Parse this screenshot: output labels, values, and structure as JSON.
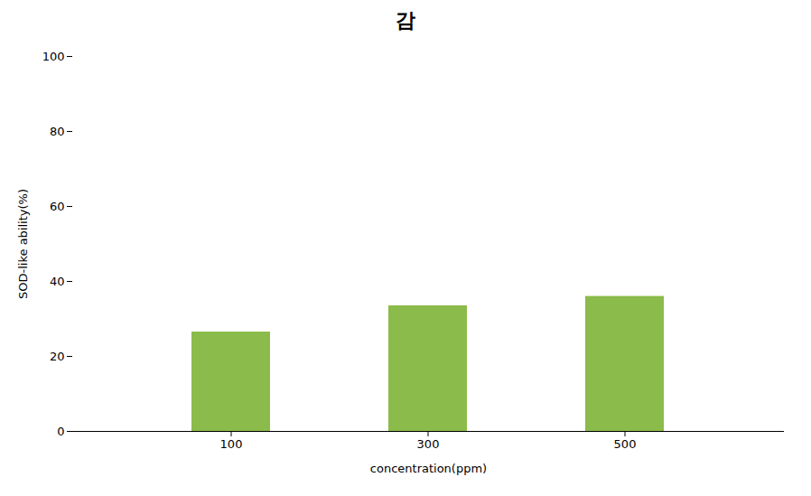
{
  "chart_data": {
    "type": "bar",
    "title": "감",
    "categories": [
      "100",
      "300",
      "500"
    ],
    "values": [
      26.5,
      33.5,
      36.0
    ],
    "color": "#8BBB4A",
    "xlabel": "concentration(ppm)",
    "ylabel": "SOD-like ability(%)",
    "ylim": [
      0,
      100
    ],
    "yticks": [
      0,
      20,
      40,
      60,
      80,
      100
    ],
    "grid": false
  }
}
